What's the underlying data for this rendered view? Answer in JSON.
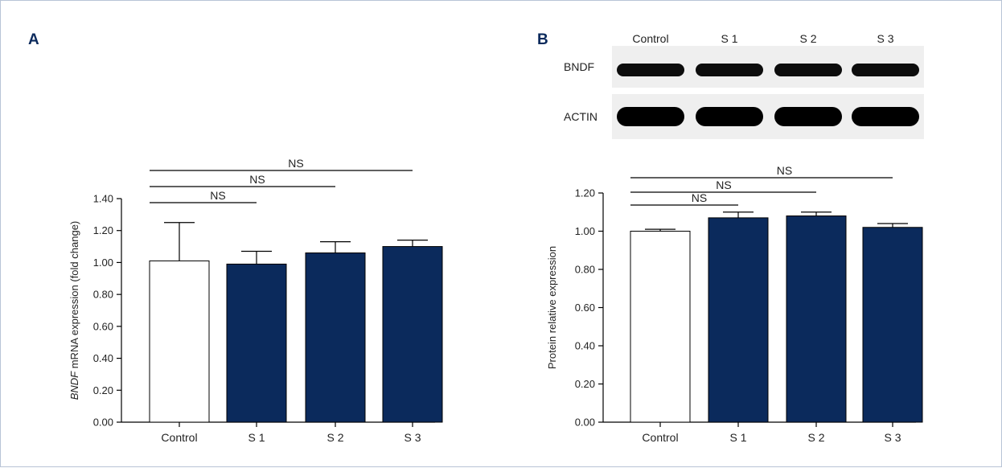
{
  "colors": {
    "bar_fill": "#0b2a5c",
    "control_fill": "#ffffff",
    "axis": "#000000",
    "panel_letter": "#0b2a5c",
    "frame_border": "#b8c4d6"
  },
  "panels": {
    "a": {
      "letter": "A"
    },
    "b": {
      "letter": "B"
    }
  },
  "blot": {
    "lane_labels": [
      "Control",
      "S 1",
      "S 2",
      "S 3"
    ],
    "rows": [
      {
        "label": "BNDF",
        "band_intensity": [
          0.95,
          0.95,
          0.95,
          0.95
        ]
      },
      {
        "label": "ACTIN",
        "band_intensity": [
          1.0,
          1.0,
          1.0,
          1.0
        ]
      }
    ]
  },
  "chart_data": [
    {
      "type": "bar",
      "panel": "A",
      "categories": [
        "Control",
        "S 1",
        "S 2",
        "S 3"
      ],
      "values": [
        1.01,
        0.99,
        1.06,
        1.1
      ],
      "errors": [
        0.24,
        0.08,
        0.07,
        0.04
      ],
      "bar_colors": [
        "#ffffff",
        "#0b2a5c",
        "#0b2a5c",
        "#0b2a5c"
      ],
      "ylabel_italic": "BNDF",
      "ylabel_rest": " mRNA expression (fold change)",
      "ylim": [
        0,
        1.4
      ],
      "yticks": [
        "0.00",
        "0.20",
        "0.40",
        "0.60",
        "0.80",
        "1.00",
        "1.20",
        "1.40"
      ],
      "significance": [
        {
          "from": "Control",
          "to": "S 1",
          "label": "NS"
        },
        {
          "from": "Control",
          "to": "S 2",
          "label": "NS"
        },
        {
          "from": "Control",
          "to": "S 3",
          "label": "NS"
        }
      ]
    },
    {
      "type": "bar",
      "panel": "B",
      "categories": [
        "Control",
        "S 1",
        "S 2",
        "S 3"
      ],
      "values": [
        1.0,
        1.07,
        1.08,
        1.02
      ],
      "errors": [
        0.01,
        0.03,
        0.02,
        0.02
      ],
      "bar_colors": [
        "#ffffff",
        "#0b2a5c",
        "#0b2a5c",
        "#0b2a5c"
      ],
      "ylabel": "Protein relative expression",
      "ylim": [
        0,
        1.2
      ],
      "yticks": [
        "0.00",
        "0.20",
        "0.40",
        "0.60",
        "0.80",
        "1.00",
        "1.20"
      ],
      "significance": [
        {
          "from": "Control",
          "to": "S 1",
          "label": "NS"
        },
        {
          "from": "Control",
          "to": "S 2",
          "label": "NS"
        },
        {
          "from": "Control",
          "to": "S 3",
          "label": "NS"
        }
      ]
    }
  ]
}
